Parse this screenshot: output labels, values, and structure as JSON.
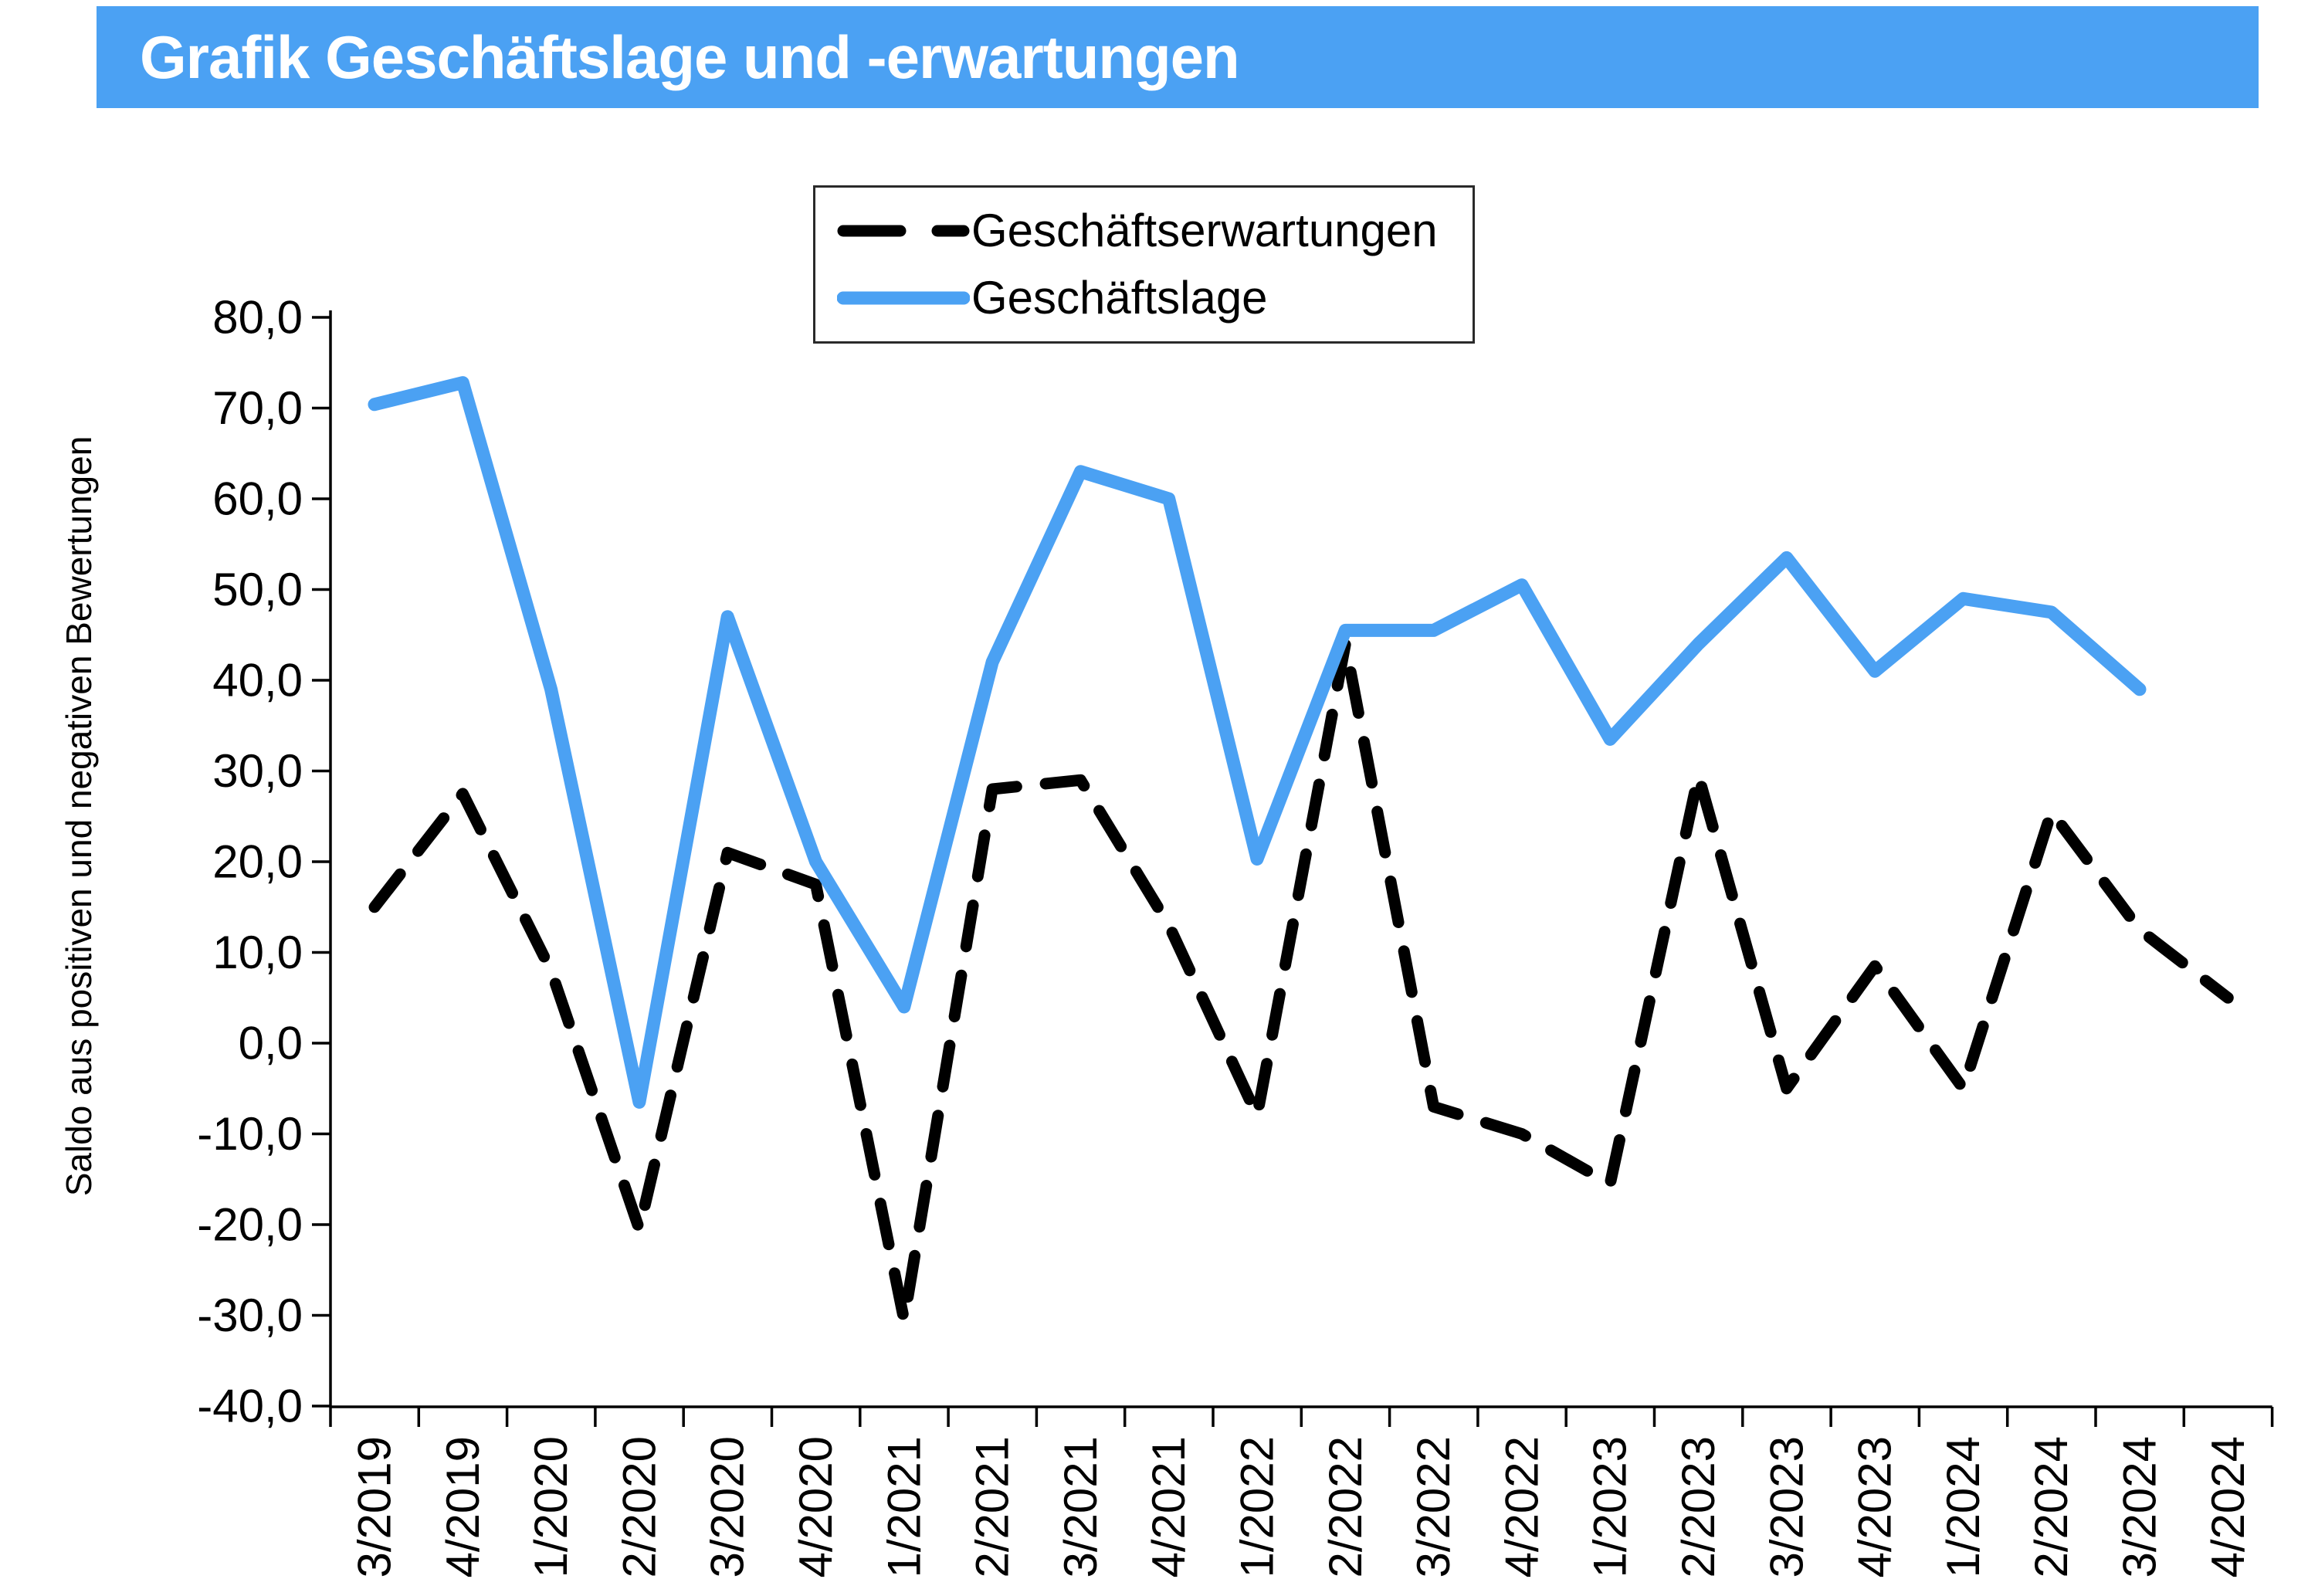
{
  "header": {
    "title": "Grafik Geschäftslage und -erwartungen",
    "accent_color": "#4BA1F3",
    "text_color": "#FFFFFF"
  },
  "chart_data": {
    "type": "line",
    "title": "Grafik Geschäftslage und -erwartungen",
    "xlabel": "",
    "ylabel": "Saldo aus positiven und negativen Bewertungen",
    "ylim": [
      -40,
      80
    ],
    "y_tick_step": 10,
    "y_tick_labels": [
      "80,0",
      "70,0",
      "60,0",
      "50,0",
      "40,0",
      "30,0",
      "20,0",
      "10,0",
      "0,0",
      "-10,0",
      "-20,0",
      "-30,0",
      "-40,0"
    ],
    "grid": false,
    "legend_position": "top-center",
    "categories": [
      "3/2019",
      "4/2019",
      "1/2020",
      "2/2020",
      "3/2020",
      "4/2020",
      "1/2021",
      "2/2021",
      "3/2021",
      "4/2021",
      "1/2022",
      "2/2022",
      "3/2022",
      "4/2022",
      "1/2023",
      "2/2023",
      "3/2023",
      "4/2023",
      "1/2024",
      "2/2024",
      "3/2024",
      "4/2024"
    ],
    "series": [
      {
        "name": "Geschäftserwartungen",
        "color": "#000000",
        "style": "dashed",
        "values": [
          15,
          27.5,
          8,
          -20.5,
          21,
          17.5,
          -30.5,
          28,
          29,
          13,
          -8,
          44,
          -7,
          -10,
          -15.5,
          29.5,
          -5,
          8.5,
          -5,
          25.5,
          12.5,
          5
        ]
      },
      {
        "name": "Geschäftslage",
        "color": "#4BA1F3",
        "style": "solid",
        "values": [
          70.4,
          72.8,
          39,
          -6.5,
          47,
          20,
          4,
          42,
          63,
          60,
          20.3,
          45.5,
          45.5,
          50.5,
          33.5,
          44,
          53.5,
          41,
          49,
          47.5,
          39,
          null
        ]
      }
    ]
  }
}
